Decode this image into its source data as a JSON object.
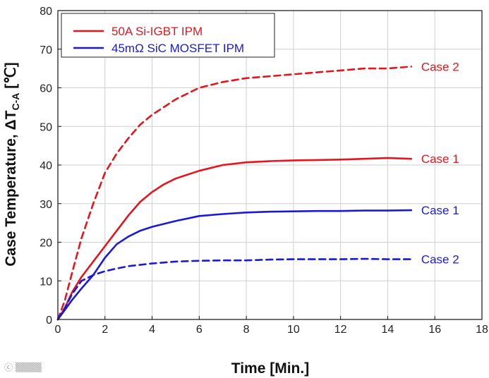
{
  "chart_data": {
    "type": "line",
    "title": "",
    "xlabel": "Time [Min.]",
    "ylabel_main": "Case Temperature, ",
    "ylabel_delta": "ΔT",
    "ylabel_sub": "C-A",
    "ylabel_unit": " [℃]",
    "xlim": [
      0,
      18
    ],
    "ylim": [
      0,
      80
    ],
    "xticks": [
      0,
      2,
      4,
      6,
      8,
      10,
      12,
      14,
      16,
      18
    ],
    "yticks": [
      0,
      10,
      20,
      30,
      40,
      50,
      60,
      70,
      80
    ],
    "grid": true,
    "legend": {
      "placement": "top-left",
      "entries": [
        {
          "label": "50A Si-IGBT IPM",
          "color": "#e8141c"
        },
        {
          "label": "45mΩ SiC MOSFET IPM",
          "color": "#1a1ad6"
        }
      ]
    },
    "series": [
      {
        "name": "50A Si-IGBT IPM Case 2",
        "label": "Case 2",
        "color": "#e8141c",
        "dash": true,
        "x": [
          0,
          0.3,
          0.6,
          1.0,
          1.5,
          2.0,
          2.5,
          3.0,
          3.5,
          4.0,
          5.0,
          6.0,
          7.0,
          8.0,
          9.0,
          10.0,
          11.0,
          12.0,
          13.0,
          14.0,
          15.0
        ],
        "y": [
          0,
          5,
          12,
          21,
          30,
          38,
          43,
          47,
          50.5,
          53,
          57,
          60,
          61.5,
          62.5,
          63,
          63.5,
          64,
          64.5,
          65,
          65,
          65.5
        ]
      },
      {
        "name": "50A Si-IGBT IPM Case 1",
        "label": "Case 1",
        "color": "#e8141c",
        "dash": false,
        "x": [
          0,
          0.3,
          0.6,
          1.0,
          1.5,
          2.0,
          2.5,
          3.0,
          3.5,
          4.0,
          4.5,
          5.0,
          6.0,
          7.0,
          8.0,
          9.0,
          10.0,
          11.0,
          12.0,
          13.0,
          14.0,
          15.0
        ],
        "y": [
          0,
          3,
          7,
          11,
          15,
          19,
          23,
          27,
          30.5,
          33,
          35,
          36.5,
          38.5,
          40,
          40.7,
          41,
          41.2,
          41.3,
          41.4,
          41.6,
          41.8,
          41.6
        ]
      },
      {
        "name": "45mΩ SiC MOSFET IPM Case 1",
        "label": "Case 1",
        "color": "#1a1ad6",
        "dash": false,
        "x": [
          0,
          0.3,
          0.6,
          1.0,
          1.5,
          2.0,
          2.5,
          3.0,
          3.5,
          4.0,
          5.0,
          6.0,
          7.0,
          8.0,
          9.0,
          10.0,
          11.0,
          12.0,
          13.0,
          14.0,
          15.0
        ],
        "y": [
          0,
          2.5,
          5,
          8,
          11.5,
          16,
          19.5,
          21.5,
          23,
          24,
          25.5,
          26.8,
          27.3,
          27.7,
          27.9,
          28,
          28.1,
          28.1,
          28.2,
          28.2,
          28.3
        ]
      },
      {
        "name": "45mΩ SiC MOSFET IPM Case 2",
        "label": "Case 2",
        "color": "#1a1ad6",
        "dash": true,
        "x": [
          0,
          0.3,
          0.6,
          1.0,
          1.5,
          2.0,
          2.5,
          3.0,
          4.0,
          5.0,
          6.0,
          7.0,
          8.0,
          9.0,
          10.0,
          11.0,
          12.0,
          13.0,
          14.0,
          15.0
        ],
        "y": [
          0,
          3,
          6.5,
          10,
          11.5,
          12.5,
          13.2,
          13.8,
          14.5,
          15,
          15.2,
          15.3,
          15.3,
          15.5,
          15.6,
          15.6,
          15.6,
          15.7,
          15.6,
          15.6
        ]
      }
    ]
  }
}
